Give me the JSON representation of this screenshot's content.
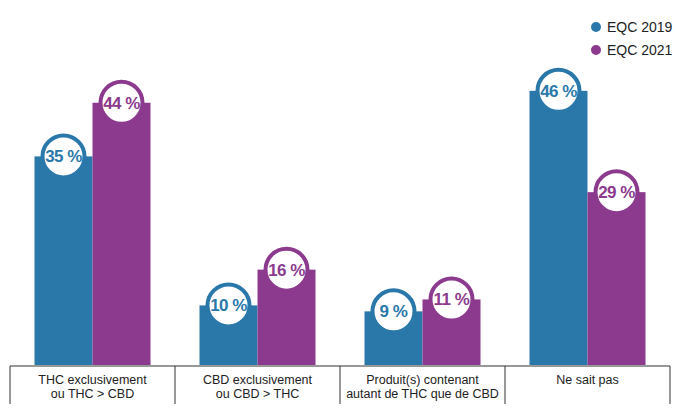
{
  "chart_data": {
    "type": "bar",
    "categories": [
      "THC exclusivement\nou THC > CBD",
      "CBD exclusivement\nou CBD > THC",
      "Produit(s) contenant\nautant de THC que de CBD",
      "Ne sait pas"
    ],
    "series": [
      {
        "name": "EQC 2019",
        "color": "#2a78aa",
        "values": [
          35,
          10,
          9,
          46
        ],
        "value_labels": [
          "35 %",
          "10 %",
          "9 %",
          "46 %"
        ]
      },
      {
        "name": "EQC 2021",
        "color": "#8c3a8d",
        "values": [
          44,
          16,
          11,
          29
        ],
        "value_labels": [
          "44 %",
          "16 %",
          "11 %",
          "29 %"
        ]
      }
    ],
    "ylim": [
      0,
      50
    ],
    "tick_labels": "x",
    "data_labels": true,
    "legend": "top-right"
  }
}
